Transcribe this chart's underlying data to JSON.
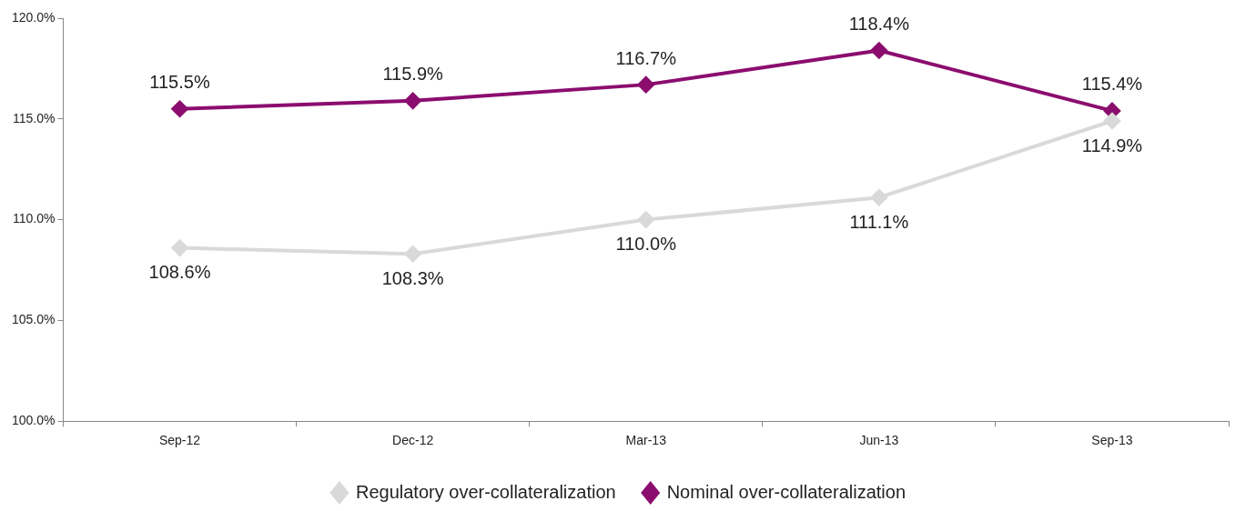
{
  "chart_data": {
    "type": "line",
    "categories": [
      "Sep-12",
      "Dec-12",
      "Mar-13",
      "Jun-13",
      "Sep-13"
    ],
    "series": [
      {
        "name": "Regulatory over-collateralization",
        "color": "#d9d9d9",
        "values": [
          108.6,
          108.3,
          110.0,
          111.1,
          114.9
        ]
      },
      {
        "name": "Nominal over-collateralization",
        "color": "#8b0d6e",
        "values": [
          115.5,
          115.9,
          116.7,
          118.4,
          115.4
        ]
      }
    ],
    "ylim": [
      100,
      120
    ],
    "yticks": [
      {
        "value": 100,
        "label": "100.0%"
      },
      {
        "value": 105,
        "label": "105.0%"
      },
      {
        "value": 110,
        "label": "110.0%"
      },
      {
        "value": 115,
        "label": "115.0%"
      },
      {
        "value": 120,
        "label": "120.0%"
      }
    ],
    "value_labels": [
      [
        "108.6%",
        "108.3%",
        "110.0%",
        "111.1%",
        "114.9%"
      ],
      [
        "115.5%",
        "115.9%",
        "116.7%",
        "118.4%",
        "115.4%"
      ]
    ],
    "grid": false,
    "legend": "bottom",
    "marker": "diamond",
    "line_style": "solid"
  }
}
